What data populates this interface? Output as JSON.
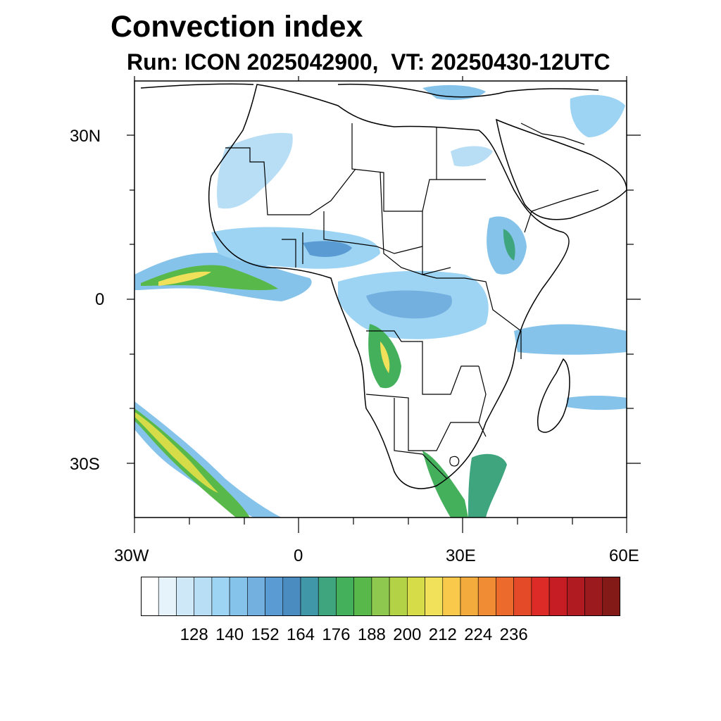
{
  "title": "Convection index",
  "subtitle": "Run: ICON 2025042900,  VT: 20250430-12UTC",
  "map": {
    "lon_range": [
      -30,
      60
    ],
    "lat_range": [
      -40,
      40
    ],
    "lat_labels": [
      "30N",
      "0",
      "30S"
    ],
    "lon_labels": [
      "30W",
      "0",
      "30E",
      "60E"
    ]
  },
  "colorbar": {
    "colors": [
      "#ffffff",
      "#e6f3fb",
      "#cfe8f7",
      "#b7def5",
      "#9dd4f3",
      "#86c3ea",
      "#73b0e0",
      "#5a9bd3",
      "#4a8cc0",
      "#3f97a8",
      "#3fa57f",
      "#44b05c",
      "#58b94a",
      "#8ec84e",
      "#b3d246",
      "#d6dc48",
      "#f1e05a",
      "#f8c94a",
      "#f4ab3e",
      "#f08c34",
      "#ec6a2c",
      "#e54a28",
      "#dd2c27",
      "#c61d24",
      "#b01b22",
      "#9a1a1e",
      "#841a18"
    ],
    "labels": [
      "128",
      "140",
      "152",
      "164",
      "176",
      "188",
      "200",
      "212",
      "224",
      "236"
    ]
  }
}
